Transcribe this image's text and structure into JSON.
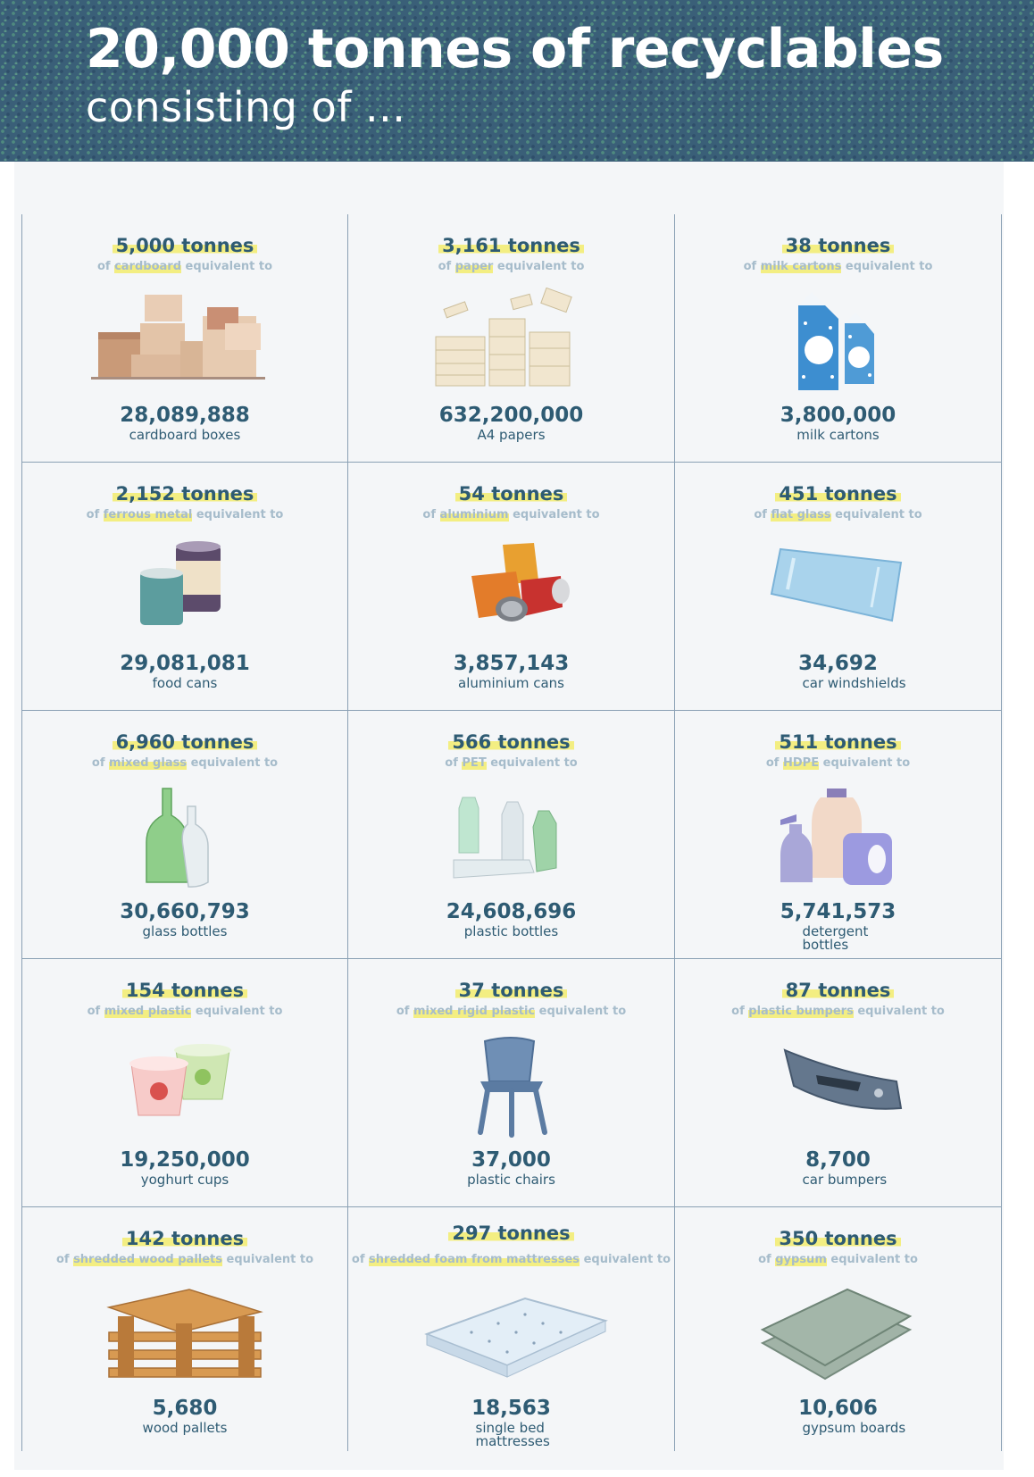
{
  "header": {
    "title": "20,000 tonnes of recyclables",
    "subtitle": "consisting of ..."
  },
  "items": [
    {
      "tonnes": "5,000 tonnes",
      "material": "cardboard",
      "count": "28,089,888",
      "label": "cardboard boxes",
      "icon": "cardboard-boxes-icon"
    },
    {
      "tonnes": "3,161 tonnes",
      "material": "paper",
      "count": "632,200,000",
      "label": "A4 papers",
      "icon": "paper-stack-icon"
    },
    {
      "tonnes": "38 tonnes",
      "material": "milk cartons",
      "count": "3,800,000",
      "label": "milk cartons",
      "icon": "milk-carton-icon"
    },
    {
      "tonnes": "2,152 tonnes",
      "material": "ferrous metal",
      "count": "29,081,081",
      "label": "food cans",
      "icon": "food-can-icon"
    },
    {
      "tonnes": "54 tonnes",
      "material": "aluminium",
      "count": "3,857,143",
      "label": "aluminium cans",
      "icon": "crushed-can-icon"
    },
    {
      "tonnes": "451 tonnes",
      "material": "flat glass",
      "count": "34,692",
      "label": "car windshields",
      "icon": "windshield-icon"
    },
    {
      "tonnes": "6,960 tonnes",
      "material": "mixed glass",
      "count": "30,660,793",
      "label": "glass bottles",
      "icon": "glass-bottle-icon"
    },
    {
      "tonnes": "566 tonnes",
      "material": "PET",
      "count": "24,608,696",
      "label": "plastic bottles",
      "icon": "plastic-bottle-icon"
    },
    {
      "tonnes": "511 tonnes",
      "material": "HDPE",
      "count": "5,741,573",
      "label": "detergent bottles",
      "icon": "detergent-bottle-icon"
    },
    {
      "tonnes": "154 tonnes",
      "material": "mixed plastic",
      "count": "19,250,000",
      "label": "yoghurt cups",
      "icon": "yoghurt-cup-icon"
    },
    {
      "tonnes": "37 tonnes",
      "material": "mixed rigid plastic",
      "count": "37,000",
      "label": "plastic chairs",
      "icon": "plastic-chair-icon"
    },
    {
      "tonnes": "87 tonnes",
      "material": "plastic bumpers",
      "count": "8,700",
      "label": "car bumpers",
      "icon": "car-bumper-icon"
    },
    {
      "tonnes": "142 tonnes",
      "material": "shredded wood pallets",
      "count": "5,680",
      "label": "wood pallets",
      "icon": "wood-pallet-icon"
    },
    {
      "tonnes": "297 tonnes",
      "material": "shredded foam from mattresses",
      "count": "18,563",
      "label": "single bed mattresses",
      "icon": "mattress-icon"
    },
    {
      "tonnes": "350 tonnes",
      "material": "gypsum",
      "count": "10,606",
      "label": "gypsum boards",
      "icon": "gypsum-board-icon"
    }
  ],
  "common": {
    "prefix": "of",
    "suffix": "equivalent to"
  },
  "colors": {
    "header_bg": "#3a5f78",
    "text": "#2e5b73",
    "highlight": "#f3ee82",
    "muted": "#a6bccb"
  }
}
